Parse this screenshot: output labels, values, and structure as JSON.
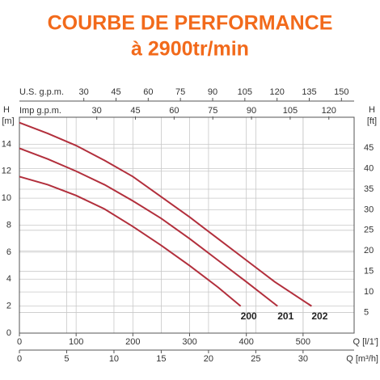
{
  "chart_data": {
    "type": "line",
    "title": "COURBE DE PERFORMANCE",
    "subtitle": "à 2900tr/min",
    "xlabel": "Q [l/1']",
    "xlim": [
      0,
      590
    ],
    "xticks": [
      0,
      100,
      200,
      300,
      400,
      500
    ],
    "ylabel": "H",
    "yunit": "[m]",
    "ylim": [
      0,
      16
    ],
    "yticks": [
      0,
      2,
      4,
      6,
      8,
      10,
      12,
      14
    ],
    "y2label": "H",
    "y2unit": "[ft]",
    "y2lim": [
      0,
      52.49
    ],
    "y2ticks": [
      5,
      10,
      15,
      20,
      25,
      30,
      35,
      40,
      45
    ],
    "grid": true,
    "x_bottom2": {
      "label": "Q [m³/h]",
      "lim": [
        0,
        35.4
      ],
      "ticks": [
        0,
        5,
        10,
        15,
        20,
        25,
        30
      ]
    },
    "x_top": [
      {
        "label": "U.S. g.p.m.",
        "lim": [
          0,
          155.9
        ],
        "ticks": [
          30,
          45,
          60,
          75,
          90,
          105,
          120,
          135,
          150
        ]
      },
      {
        "label": "Imp g.p.m.",
        "lim": [
          0,
          129.8
        ],
        "ticks": [
          30,
          45,
          60,
          75,
          90,
          105,
          120
        ]
      }
    ],
    "series": [
      {
        "name": "200",
        "color": "#b22f3c",
        "x": [
          0,
          50,
          100,
          150,
          200,
          250,
          300,
          350,
          390
        ],
        "values": [
          11.6,
          11,
          10.2,
          9.2,
          7.9,
          6.5,
          5,
          3.4,
          2
        ]
      },
      {
        "name": "201",
        "color": "#b22f3c",
        "x": [
          0,
          50,
          100,
          150,
          200,
          250,
          300,
          350,
          400,
          455
        ],
        "values": [
          13.7,
          12.9,
          12,
          11,
          9.8,
          8.5,
          7,
          5.4,
          3.8,
          2
        ]
      },
      {
        "name": "202",
        "color": "#b22f3c",
        "x": [
          0,
          50,
          100,
          150,
          200,
          250,
          300,
          350,
          400,
          450,
          515
        ],
        "values": [
          15.6,
          14.8,
          13.9,
          12.8,
          11.6,
          10.1,
          8.6,
          7,
          5.4,
          3.8,
          2
        ]
      }
    ]
  }
}
